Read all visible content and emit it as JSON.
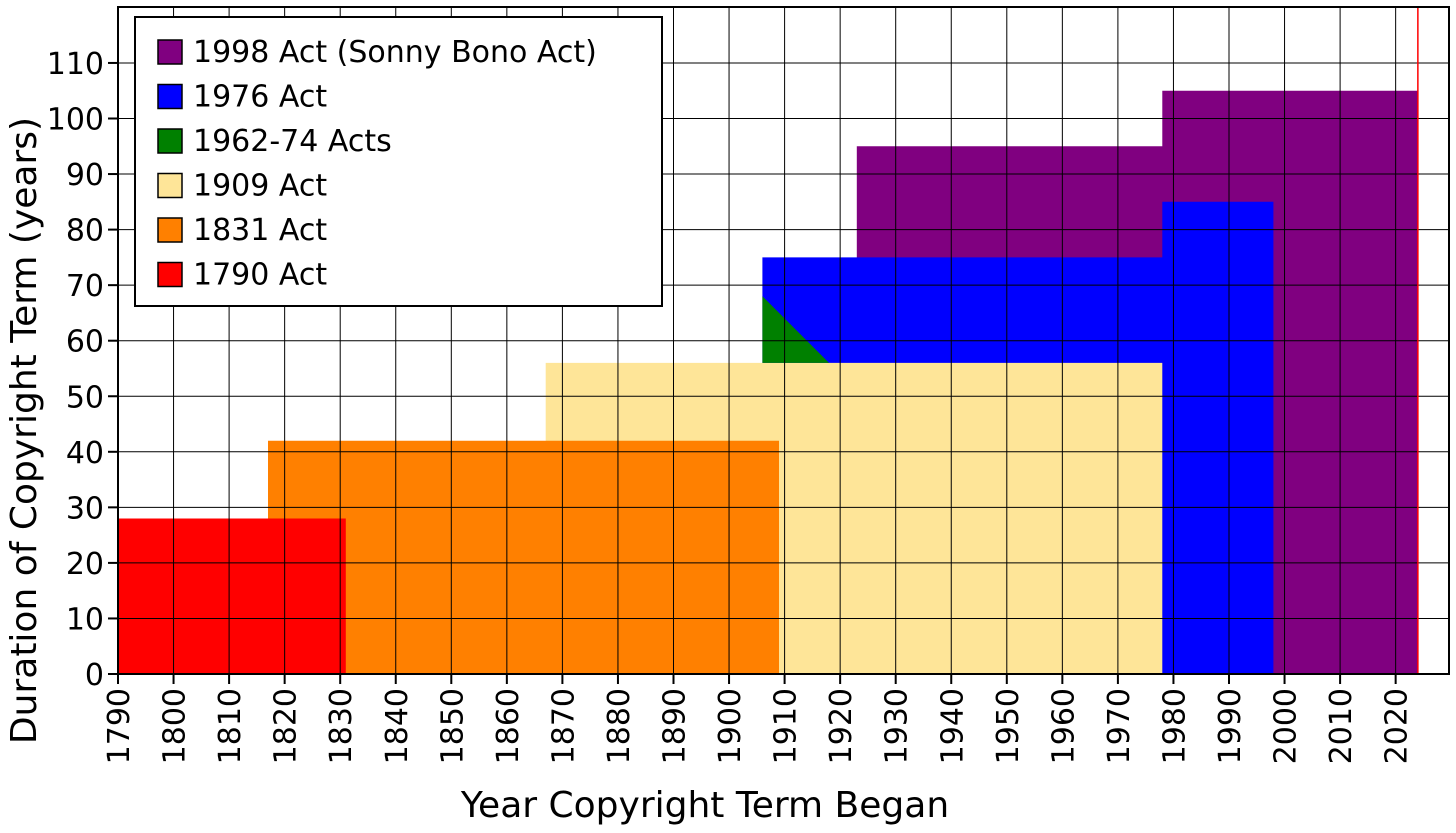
{
  "chart_data": {
    "type": "area",
    "xlabel": "Year Copyright Term Began",
    "ylabel": "Duration of Copyright Term (years)",
    "xlim": [
      1790,
      2030
    ],
    "ylim": [
      0,
      120
    ],
    "x_ticks": [
      "1790",
      "1800",
      "1810",
      "1820",
      "1830",
      "1840",
      "1850",
      "1860",
      "1870",
      "1880",
      "1890",
      "1900",
      "1910",
      "1920",
      "1930",
      "1940",
      "1950",
      "1960",
      "1970",
      "1980",
      "1990",
      "2000",
      "2010",
      "2020"
    ],
    "y_ticks": [
      "0",
      "10",
      "20",
      "30",
      "40",
      "50",
      "60",
      "70",
      "80",
      "90",
      "100",
      "110"
    ],
    "grid": true,
    "legend_position": "top-left",
    "current_year_marker": 2024,
    "series": [
      {
        "name": "1790 Act",
        "color": "#ff0000",
        "points": [
          [
            1790,
            28
          ],
          [
            1831,
            28
          ]
        ]
      },
      {
        "name": "1831 Act",
        "color": "#ff8000",
        "points": [
          [
            1817,
            42
          ],
          [
            1909,
            42
          ]
        ]
      },
      {
        "name": "1909 Act",
        "color": "#fee598",
        "points": [
          [
            1867,
            56
          ],
          [
            1978,
            56
          ]
        ]
      },
      {
        "name": "1962-74 Acts",
        "color": "#008000",
        "points": [
          [
            1906,
            68
          ],
          [
            1918,
            56
          ]
        ]
      },
      {
        "name": "1976 Act",
        "color": "#0000ff",
        "points": [
          [
            1906,
            75
          ],
          [
            1978,
            75
          ],
          [
            1978,
            85
          ],
          [
            1998,
            85
          ]
        ]
      },
      {
        "name": "1998 Act (Sonny Bono Act)",
        "color": "#800080",
        "points": [
          [
            1923,
            95
          ],
          [
            1978,
            95
          ],
          [
            1978,
            105
          ],
          [
            2024,
            105
          ]
        ]
      }
    ],
    "legend": [
      {
        "label": "1998 Act (Sonny Bono Act)",
        "color": "#800080"
      },
      {
        "label": "1976 Act",
        "color": "#0000ff"
      },
      {
        "label": "1962-74 Acts",
        "color": "#008000"
      },
      {
        "label": "1909 Act",
        "color": "#fee598"
      },
      {
        "label": "1831 Act",
        "color": "#ff8000"
      },
      {
        "label": "1790 Act",
        "color": "#ff0000"
      }
    ]
  }
}
